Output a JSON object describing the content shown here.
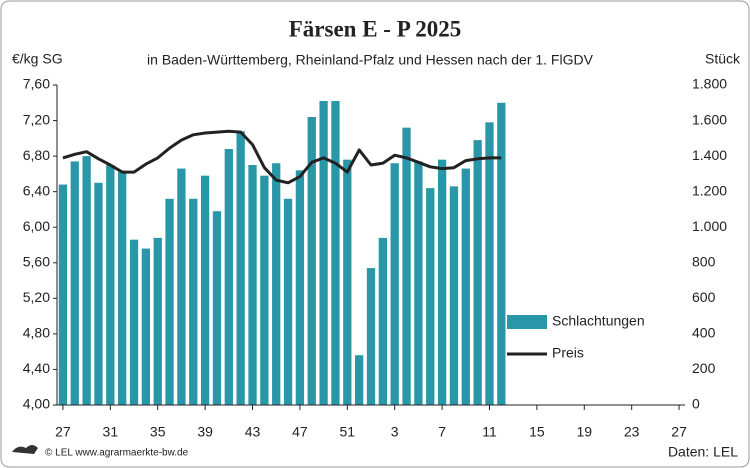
{
  "chart_data": {
    "type": "bar",
    "title": "Färsen E - P 2025",
    "subtitle": "in Baden-Württemberg, Rheinland-Pfalz und Hessen nach der 1. FlGDV",
    "y_label": "€/kg SG",
    "y2_label": "Stück",
    "source": "Daten: LEL",
    "copyright": "© LEL www.agrarmaerkte-bw.de",
    "categories": [
      "27",
      null,
      null,
      null,
      "31",
      null,
      null,
      null,
      "35",
      null,
      null,
      null,
      "39",
      null,
      null,
      null,
      "43",
      null,
      null,
      null,
      "47",
      null,
      null,
      null,
      "51",
      null,
      null,
      null,
      "3",
      null,
      null,
      null,
      "7",
      null,
      null,
      null,
      "11",
      null,
      null,
      null,
      "15",
      null,
      null,
      null,
      "19",
      null,
      null,
      null,
      "23",
      null,
      null,
      null,
      "27"
    ],
    "series": [
      {
        "name": "Schlachtungen",
        "type": "bar",
        "axis": "y2",
        "color": "#2a97a8",
        "values": [
          1240,
          1370,
          1400,
          1250,
          1350,
          1310,
          930,
          880,
          940,
          1160,
          1330,
          1160,
          1290,
          1090,
          1440,
          1540,
          1350,
          1290,
          1360,
          1160,
          1320,
          1620,
          1710,
          1710,
          1380,
          280,
          770,
          940,
          1360,
          1560,
          1370,
          1220,
          1380,
          1230,
          1330,
          1490,
          1590,
          1700,
          null,
          null,
          null,
          null,
          null,
          null,
          null,
          null,
          null,
          null,
          null,
          null,
          null,
          null,
          null
        ]
      },
      {
        "name": "Preis",
        "type": "line",
        "axis": "y",
        "color": "#222222",
        "values": [
          6.78,
          6.82,
          6.85,
          6.77,
          6.7,
          6.62,
          6.62,
          6.71,
          6.78,
          6.89,
          6.98,
          7.04,
          7.06,
          7.07,
          7.08,
          7.07,
          6.93,
          6.67,
          6.53,
          6.5,
          6.57,
          6.73,
          6.78,
          6.72,
          6.62,
          6.87,
          6.7,
          6.72,
          6.81,
          6.78,
          6.73,
          6.68,
          6.66,
          6.67,
          6.75,
          6.77,
          6.78,
          6.78,
          null,
          null,
          null,
          null,
          null,
          null,
          null,
          null,
          null,
          null,
          null,
          null,
          null,
          null,
          null
        ]
      }
    ],
    "ylim": [
      4,
      7.6
    ],
    "yticks": [
      {
        "value": 4,
        "label": "4,00"
      },
      {
        "value": 4.4,
        "label": "4,40"
      },
      {
        "value": 4.8,
        "label": "4,80"
      },
      {
        "value": 5.2,
        "label": "5,20"
      },
      {
        "value": 5.6,
        "label": "5,60"
      },
      {
        "value": 6,
        "label": "6,00"
      },
      {
        "value": 6.4,
        "label": "6,40"
      },
      {
        "value": 6.8,
        "label": "6,80"
      },
      {
        "value": 7.2,
        "label": "7,20"
      },
      {
        "value": 7.6,
        "label": "7,60"
      }
    ],
    "y2lim": [
      0,
      1800
    ],
    "y2ticks": [
      0,
      200,
      400,
      600,
      800,
      {
        "value": 1000,
        "label": "1.000"
      },
      {
        "value": 1200,
        "label": "1.200"
      },
      {
        "value": 1400,
        "label": "1.400"
      },
      {
        "value": 1600,
        "label": "1.600"
      },
      {
        "value": 1800,
        "label": "1.800"
      }
    ],
    "legend": "lower right",
    "grid": false
  }
}
